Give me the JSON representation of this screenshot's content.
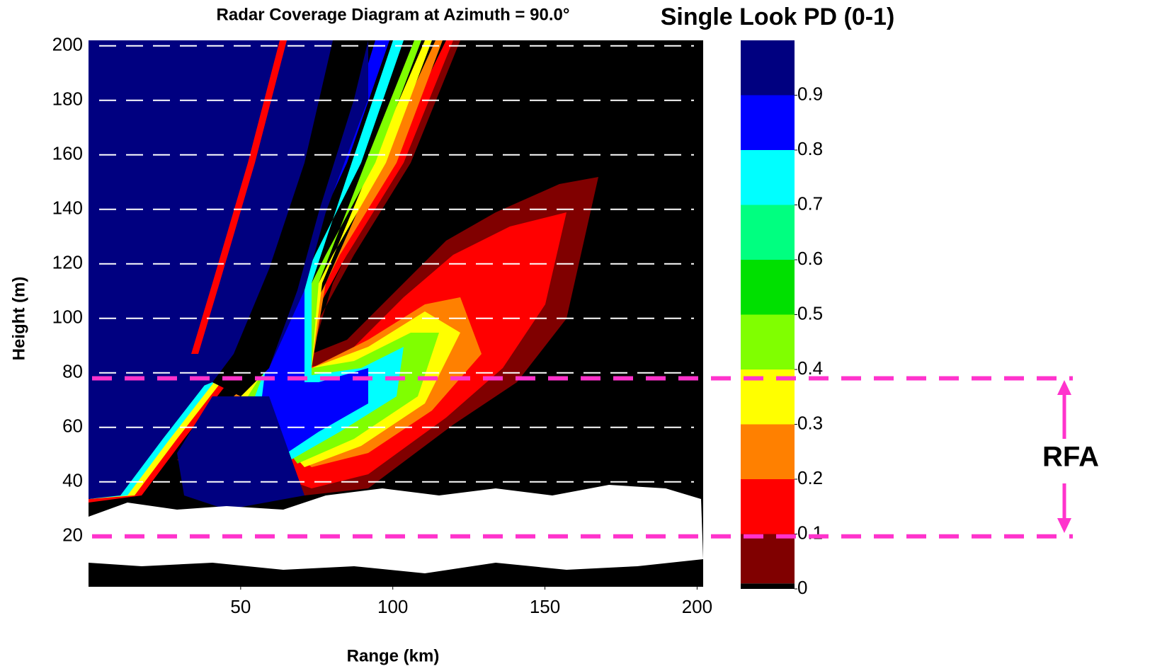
{
  "chart_data": {
    "type": "heatmap",
    "title": "Radar Coverage Diagram at Azimuth = 90.0°",
    "colorbar_title": "Single Look PD (0-1)",
    "xlabel": "Range (km)",
    "ylabel": "Height (m)",
    "xlim": [
      0,
      202
    ],
    "ylim": [
      1.5,
      202
    ],
    "xticks": [
      50,
      100,
      150,
      200
    ],
    "yticks": [
      20,
      40,
      60,
      80,
      100,
      120,
      140,
      160,
      180,
      200
    ],
    "grid": true,
    "colorbar": {
      "bounds": [
        0,
        0.01,
        0.1,
        0.2,
        0.3,
        0.4,
        0.5,
        0.6,
        0.7,
        0.8,
        0.9,
        1
      ],
      "colors": [
        "#000000",
        "#800000",
        "#ff0000",
        "#ff8000",
        "#ffff00",
        "#80ff00",
        "#00e000",
        "#00ff80",
        "#00ffff",
        "#0000ff",
        "#000080"
      ],
      "ticks": [
        0,
        0.1,
        0.2,
        0.3,
        0.4,
        0.5,
        0.6,
        0.7,
        0.8,
        0.9
      ]
    },
    "annotation": {
      "label": "RFA",
      "range": [
        20,
        78
      ],
      "color": "#ff33cc"
    }
  }
}
